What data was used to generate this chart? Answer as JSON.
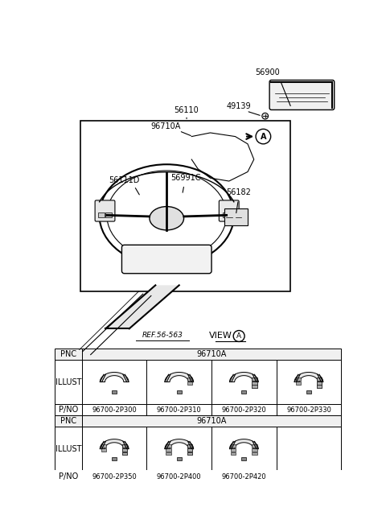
{
  "bg_color": "#ffffff",
  "text_color": "#000000",
  "font_size_label": 7,
  "font_size_table": 7,
  "parts": [
    "56900",
    "56110",
    "49139",
    "96710A",
    "56111D",
    "56991C",
    "56182",
    "REF.56-563"
  ],
  "table1_pnc": "96710A",
  "table1_pno": [
    "96700-2P300",
    "96700-2P310",
    "96700-2P320",
    "96700-2P330"
  ],
  "table2_pnc": "96710A",
  "table2_pno": [
    "96700-2P350",
    "96700-2P400",
    "96700-2P420"
  ],
  "row_labels": [
    "PNC",
    "ILLUST",
    "P/NO"
  ],
  "view_label": "VIEW",
  "view_circle": "A",
  "ref_label": "REF.56-563"
}
